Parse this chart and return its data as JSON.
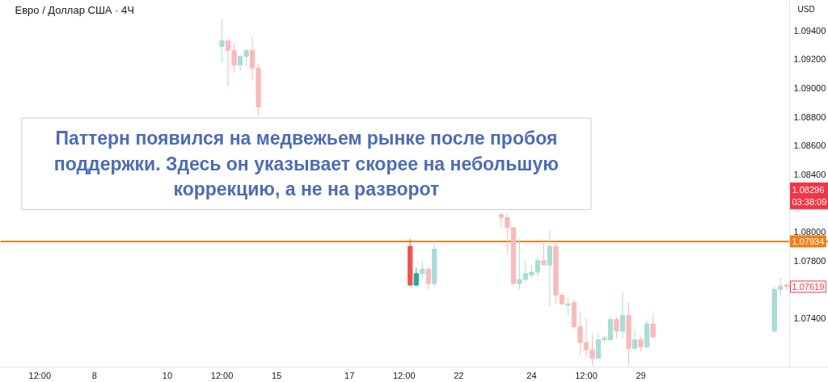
{
  "chart_data": {
    "type": "candlestick",
    "title": "Евро / Доллар США · 4Ч",
    "ylabel": "USD",
    "categories": [
      null,
      null,
      null,
      null,
      null,
      null,
      "12:00",
      null,
      null,
      null,
      null,
      null,
      null,
      null,
      null,
      "8",
      null,
      null,
      null,
      null,
      null,
      null,
      null,
      null,
      null,
      null,
      null,
      "10",
      null,
      null,
      null,
      null,
      null,
      null,
      null,
      null,
      "12:00",
      null,
      null,
      null,
      null,
      null,
      null,
      null,
      null,
      "15",
      null,
      null,
      null,
      null,
      null,
      null,
      null,
      null,
      null,
      null,
      null,
      "17",
      null,
      null,
      null,
      null,
      null,
      null,
      null,
      null,
      "12:00",
      null,
      null,
      null,
      null,
      null,
      null,
      null,
      null,
      "22",
      null,
      null,
      null,
      null,
      null,
      null,
      null,
      null,
      null,
      null,
      null,
      "24",
      null,
      null,
      null,
      null,
      null,
      null,
      null,
      null,
      "12:00",
      null,
      null,
      null,
      null,
      null,
      null,
      null,
      null,
      "29",
      null,
      null,
      null,
      null,
      null,
      null,
      null,
      null,
      null,
      null,
      null,
      null,
      null,
      null,
      null,
      null,
      null,
      null,
      null,
      null,
      null,
      null,
      null,
      null
    ],
    "ohlc": [
      null,
      null,
      null,
      null,
      null,
      null,
      null,
      null,
      null,
      null,
      null,
      null,
      null,
      null,
      null,
      null,
      null,
      null,
      null,
      null,
      null,
      null,
      null,
      null,
      null,
      null,
      null,
      null,
      null,
      null,
      null,
      null,
      null,
      null,
      null,
      null,
      [
        1.0929,
        1.0948,
        1.0918,
        1.0933
      ],
      [
        1.0933,
        1.0934,
        1.0901,
        1.0926
      ],
      [
        1.0926,
        1.0931,
        1.0911,
        1.0916
      ],
      [
        1.0916,
        1.0923,
        1.0912,
        1.0922
      ],
      [
        1.0922,
        1.0927,
        1.0915,
        1.0926
      ],
      [
        1.0926,
        1.0936,
        1.0905,
        1.0914
      ],
      [
        1.0914,
        1.0917,
        1.0881,
        1.0887
      ],
      null,
      null,
      null,
      null,
      null,
      null,
      null,
      null,
      null,
      null,
      null,
      null,
      null,
      null,
      null,
      null,
      null,
      null,
      null,
      null,
      null,
      null,
      null,
      null,
      [
        1.079,
        1.0795,
        1.0763,
        1.0763
      ],
      [
        1.0763,
        1.0775,
        1.0762,
        1.0771
      ],
      [
        1.0771,
        1.078,
        1.0768,
        1.0774
      ],
      [
        1.0774,
        1.0776,
        1.076,
        1.0764
      ],
      [
        1.0764,
        1.0794,
        1.0762,
        1.0788
      ],
      null,
      null,
      null,
      null,
      null,
      null,
      null,
      null,
      null,
      null,
      [
        1.0812,
        1.0814,
        1.0803,
        1.081
      ],
      [
        1.081,
        1.0813,
        1.0785,
        1.0803
      ],
      [
        1.0803,
        1.0803,
        1.0763,
        1.0764
      ],
      [
        1.0764,
        1.0795,
        1.076,
        1.0767
      ],
      [
        1.0767,
        1.078,
        1.0765,
        1.0771
      ],
      [
        1.077,
        1.0777,
        1.0768,
        1.0772
      ],
      [
        1.0772,
        1.0782,
        1.0769,
        1.078
      ],
      [
        1.078,
        1.0795,
        1.0777,
        1.0777
      ],
      [
        1.0777,
        1.0801,
        1.0748,
        1.079
      ],
      [
        1.079,
        1.0794,
        1.075,
        1.0756
      ],
      [
        1.0756,
        1.0758,
        1.0749,
        1.075
      ],
      [
        1.0749,
        1.0754,
        1.0742,
        1.075
      ],
      [
        1.0751,
        1.0753,
        1.0733,
        1.0734
      ],
      [
        1.0734,
        1.0744,
        1.0714,
        1.0723
      ],
      [
        1.0723,
        1.074,
        1.0713,
        1.0718
      ],
      [
        1.0718,
        1.0729,
        1.0707,
        1.0712
      ],
      [
        1.0712,
        1.073,
        1.0712,
        1.0725
      ],
      [
        1.0725,
        1.0728,
        1.0723,
        1.0726
      ],
      [
        1.0725,
        1.0741,
        1.0724,
        1.0739
      ],
      [
        1.0739,
        1.0741,
        1.0726,
        1.0731
      ],
      [
        1.0731,
        1.0758,
        1.0726,
        1.0742
      ],
      [
        1.0742,
        1.0751,
        1.0707,
        1.0719
      ],
      [
        1.0719,
        1.0732,
        1.0719,
        1.0725
      ],
      [
        1.0725,
        1.0727,
        1.0717,
        1.072
      ],
      [
        1.072,
        1.0738,
        1.0719,
        1.0736
      ],
      [
        1.0736,
        1.0743,
        1.0726,
        1.0727
      ],
      null,
      null,
      null,
      null,
      null,
      null,
      null,
      null,
      null,
      null,
      null,
      null,
      null,
      null,
      null,
      null,
      null,
      null,
      null,
      [
        1.0731,
        1.0762,
        1.073,
        1.076
      ],
      [
        1.076,
        1.0768,
        1.0756,
        1.0762
      ],
      [
        1.0763,
        1.0764,
        1.0759,
        1.0762
      ]
    ],
    "colors": [
      null,
      null,
      null,
      null,
      null,
      null,
      null,
      null,
      null,
      null,
      null,
      null,
      null,
      null,
      null,
      null,
      null,
      null,
      null,
      null,
      null,
      null,
      null,
      null,
      null,
      null,
      null,
      null,
      null,
      null,
      null,
      null,
      null,
      null,
      null,
      null,
      "#a8dcd5",
      "#f8bbb9",
      "#f8bbb9",
      "#a8dcd5",
      "#a8dcd5",
      "#f8bbb9",
      "#f8bbb9",
      null,
      null,
      null,
      null,
      null,
      null,
      null,
      null,
      null,
      null,
      null,
      null,
      null,
      null,
      null,
      null,
      null,
      null,
      null,
      null,
      null,
      null,
      null,
      null,
      "#ef5350",
      "#26a69a",
      "#a8dcd5",
      "#f8bbb9",
      "#a8dcd5",
      null,
      null,
      null,
      null,
      null,
      null,
      null,
      null,
      null,
      null,
      "#f8bbb9",
      "#f8bbb9",
      "#f8bbb9",
      "#a8dcd5",
      "#a8dcd5",
      "#a8dcd5",
      "#a8dcd5",
      "#f8bbb9",
      "#a8dcd5",
      "#f8bbb9",
      "#f8bbb9",
      "#a8dcd5",
      "#f8bbb9",
      "#f8bbb9",
      "#f8bbb9",
      "#f8bbb9",
      "#a8dcd5",
      "#a8dcd5",
      "#a8dcd5",
      "#f8bbb9",
      "#a8dcd5",
      "#f8bbb9",
      "#a8dcd5",
      "#f8bbb9",
      "#a8dcd5",
      "#f8bbb9",
      null,
      null,
      null,
      null,
      null,
      null,
      null,
      null,
      null,
      null,
      null,
      null,
      null,
      null,
      null,
      null,
      null,
      null,
      null,
      "#a8dcd5",
      "#a8dcd5",
      "#f8bbb9"
    ],
    "ylim": [
      1.0706,
      1.0961
    ],
    "yticks": [
      {
        "value": 1.074,
        "label": "1.07400"
      },
      {
        "value": 1.078,
        "label": "1.07800"
      },
      {
        "value": 1.08,
        "label": "1.08000"
      },
      {
        "value": 1.084,
        "label": "1.08400"
      },
      {
        "value": 1.086,
        "label": "1.08600"
      },
      {
        "value": 1.088,
        "label": "1.08800"
      },
      {
        "value": 1.09,
        "label": "1.09000"
      },
      {
        "value": 1.092,
        "label": "1.09200"
      },
      {
        "value": 1.094,
        "label": "1.09400"
      }
    ],
    "ref_lines": [
      {
        "axis": "y",
        "value": 1.07934,
        "label": "1.07934",
        "color": "#f57f17"
      }
    ],
    "annotations": [
      "Паттерн появился на медвежьем рынке после пробоя поддержки. Здесь он указывает скорее на небольшую коррекцию, а не на разворот",
      "1.08296\n03:38:09",
      "1.07619"
    ]
  }
}
